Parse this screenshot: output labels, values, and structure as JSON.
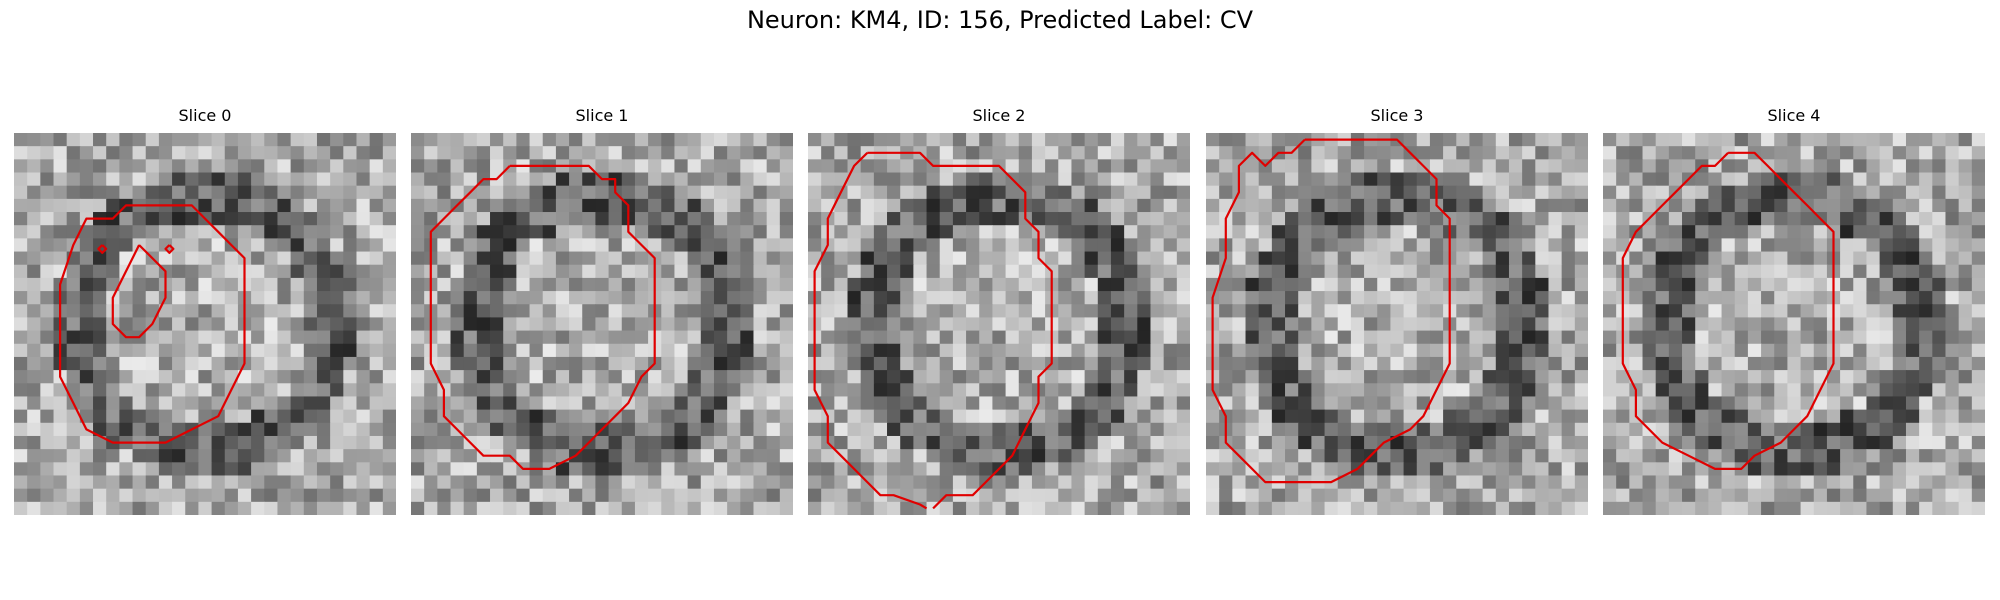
{
  "figure": {
    "title": "Neuron: KM4, ID: 156, Predicted Label: CV"
  },
  "contour_color": "#e00000",
  "panels": [
    {
      "title": "Slice 0",
      "seed": 11,
      "contours": [
        [
          [
            9.5,
            5.5
          ],
          [
            13.5,
            5.5
          ],
          [
            14.5,
            6.5
          ],
          [
            15.5,
            7.5
          ],
          [
            16.5,
            8.5
          ],
          [
            17.5,
            9.5
          ],
          [
            17.5,
            13.5
          ],
          [
            17.5,
            17.5
          ],
          [
            16.5,
            19.5
          ],
          [
            15.5,
            21.5
          ],
          [
            13.5,
            22.5
          ],
          [
            11.5,
            23.5
          ],
          [
            9.5,
            23.5
          ],
          [
            7.5,
            23.5
          ],
          [
            5.5,
            22.5
          ],
          [
            4.5,
            20.5
          ],
          [
            3.5,
            18.5
          ],
          [
            3.5,
            15.5
          ],
          [
            3.5,
            11.5
          ],
          [
            4.5,
            8.5
          ],
          [
            5.5,
            6.5
          ],
          [
            7.5,
            6.5
          ],
          [
            8.5,
            5.5
          ],
          [
            9.5,
            5.5
          ]
        ],
        [
          [
            9.5,
            8.5
          ],
          [
            10.5,
            9.5
          ],
          [
            11.5,
            10.5
          ],
          [
            11.5,
            12.5
          ],
          [
            10.5,
            14.5
          ],
          [
            9.5,
            15.5
          ],
          [
            8.5,
            15.5
          ],
          [
            7.5,
            14.5
          ],
          [
            7.5,
            12.5
          ],
          [
            8.5,
            10.5
          ],
          [
            9.5,
            8.5
          ]
        ],
        [
          [
            6.7,
            8.5
          ],
          [
            7.0,
            8.8
          ],
          [
            6.7,
            9.1
          ],
          [
            6.4,
            8.8
          ],
          [
            6.7,
            8.5
          ]
        ],
        [
          [
            11.8,
            8.5
          ],
          [
            12.1,
            8.8
          ],
          [
            11.8,
            9.1
          ],
          [
            11.5,
            8.8
          ],
          [
            11.8,
            8.5
          ]
        ]
      ]
    },
    {
      "title": "Slice 1",
      "seed": 23,
      "contours": [
        [
          [
            7.5,
            2.5
          ],
          [
            10.5,
            2.5
          ],
          [
            13.5,
            2.5
          ],
          [
            14.5,
            3.5
          ],
          [
            15.5,
            3.5
          ],
          [
            15.5,
            4.5
          ],
          [
            16.5,
            5.5
          ],
          [
            16.5,
            7.5
          ],
          [
            17.5,
            8.5
          ],
          [
            18.5,
            9.5
          ],
          [
            18.5,
            13.5
          ],
          [
            18.5,
            17.5
          ],
          [
            17.5,
            18.5
          ],
          [
            16.5,
            20.5
          ],
          [
            15.5,
            21.5
          ],
          [
            14.5,
            22.5
          ],
          [
            13.5,
            23.5
          ],
          [
            12.5,
            24.5
          ],
          [
            10.5,
            25.5
          ],
          [
            8.5,
            25.5
          ],
          [
            7.5,
            24.5
          ],
          [
            5.5,
            24.5
          ],
          [
            4.5,
            23.5
          ],
          [
            3.5,
            22.5
          ],
          [
            2.5,
            21.5
          ],
          [
            2.5,
            19.5
          ],
          [
            1.5,
            17.5
          ],
          [
            1.5,
            13.5
          ],
          [
            1.5,
            10.5
          ],
          [
            1.5,
            7.5
          ],
          [
            2.5,
            6.5
          ],
          [
            3.5,
            5.5
          ],
          [
            4.5,
            4.5
          ],
          [
            5.5,
            3.5
          ],
          [
            6.5,
            3.5
          ],
          [
            7.5,
            2.5
          ]
        ]
      ]
    },
    {
      "title": "Slice 2",
      "seed": 37,
      "contours": [
        [
          [
            4.5,
            1.5
          ],
          [
            8.5,
            1.5
          ],
          [
            9.5,
            2.5
          ],
          [
            12.5,
            2.5
          ],
          [
            14.5,
            2.5
          ],
          [
            15.5,
            3.5
          ],
          [
            16.5,
            4.5
          ],
          [
            16.5,
            6.5
          ],
          [
            17.5,
            7.5
          ],
          [
            17.5,
            9.5
          ],
          [
            18.5,
            10.5
          ],
          [
            18.5,
            14.5
          ],
          [
            18.5,
            17.5
          ],
          [
            17.5,
            18.5
          ],
          [
            17.5,
            20.5
          ],
          [
            16.5,
            22.5
          ],
          [
            15.5,
            24.5
          ],
          [
            14.5,
            25.5
          ],
          [
            13.5,
            26.5
          ],
          [
            12.5,
            27.5
          ],
          [
            10.5,
            27.5
          ],
          [
            9.5,
            28.5
          ]
        ],
        [
          [
            9.0,
            28.5
          ],
          [
            8.5,
            28.2
          ],
          [
            6.5,
            27.5
          ],
          [
            5.5,
            27.5
          ],
          [
            4.5,
            26.5
          ],
          [
            3.5,
            25.5
          ],
          [
            2.5,
            24.5
          ],
          [
            1.5,
            23.5
          ],
          [
            1.5,
            21.5
          ],
          [
            0.5,
            19.5
          ],
          [
            0.5,
            15.5
          ],
          [
            0.5,
            10.5
          ],
          [
            1.5,
            8.5
          ],
          [
            1.5,
            6.5
          ],
          [
            2.5,
            4.5
          ],
          [
            3.5,
            2.5
          ],
          [
            4.5,
            1.5
          ]
        ]
      ]
    },
    {
      "title": "Slice 3",
      "seed": 53,
      "contours": [
        [
          [
            7.5,
            0.5
          ],
          [
            11.5,
            0.5
          ],
          [
            14.5,
            0.5
          ],
          [
            15.5,
            1.5
          ],
          [
            16.5,
            2.5
          ],
          [
            17.5,
            3.5
          ],
          [
            17.5,
            5.5
          ],
          [
            18.5,
            6.5
          ],
          [
            18.5,
            8.5
          ],
          [
            18.5,
            11.5
          ],
          [
            18.5,
            14.5
          ],
          [
            18.5,
            17.5
          ],
          [
            17.5,
            19.5
          ],
          [
            16.5,
            21.5
          ],
          [
            15.5,
            22.5
          ],
          [
            13.5,
            23.5
          ],
          [
            12.5,
            24.5
          ],
          [
            11.5,
            25.5
          ],
          [
            9.5,
            26.5
          ],
          [
            6.5,
            26.5
          ],
          [
            4.5,
            26.5
          ],
          [
            3.5,
            25.5
          ],
          [
            2.5,
            24.5
          ],
          [
            1.5,
            23.5
          ],
          [
            1.5,
            21.5
          ],
          [
            0.5,
            19.5
          ],
          [
            0.5,
            16.5
          ],
          [
            0.5,
            12.5
          ],
          [
            1.5,
            9.5
          ],
          [
            1.5,
            6.5
          ],
          [
            2.5,
            4.5
          ],
          [
            2.5,
            2.5
          ],
          [
            3.5,
            1.5
          ],
          [
            4.5,
            2.5
          ],
          [
            5.5,
            1.5
          ],
          [
            6.5,
            1.5
          ],
          [
            7.5,
            0.5
          ]
        ]
      ]
    },
    {
      "title": "Slice 4",
      "seed": 71,
      "contours": [
        [
          [
            9.5,
            1.5
          ],
          [
            11.5,
            1.5
          ],
          [
            12.5,
            2.5
          ],
          [
            13.5,
            3.5
          ],
          [
            14.5,
            4.5
          ],
          [
            15.5,
            5.5
          ],
          [
            16.5,
            6.5
          ],
          [
            17.5,
            7.5
          ],
          [
            17.5,
            10.5
          ],
          [
            17.5,
            14.5
          ],
          [
            17.5,
            17.5
          ],
          [
            16.5,
            19.5
          ],
          [
            15.5,
            21.5
          ],
          [
            14.5,
            22.5
          ],
          [
            13.5,
            23.5
          ],
          [
            11.5,
            24.5
          ],
          [
            10.5,
            25.5
          ],
          [
            8.5,
            25.5
          ],
          [
            6.5,
            24.5
          ],
          [
            4.5,
            23.5
          ],
          [
            3.5,
            22.5
          ],
          [
            2.5,
            21.5
          ],
          [
            2.5,
            19.5
          ],
          [
            1.5,
            17.5
          ],
          [
            1.5,
            13.5
          ],
          [
            1.5,
            9.5
          ],
          [
            2.5,
            7.5
          ],
          [
            3.5,
            6.5
          ],
          [
            4.5,
            5.5
          ],
          [
            5.5,
            4.5
          ],
          [
            6.5,
            3.5
          ],
          [
            7.5,
            2.5
          ],
          [
            8.5,
            2.5
          ],
          [
            9.5,
            1.5
          ]
        ]
      ]
    }
  ]
}
